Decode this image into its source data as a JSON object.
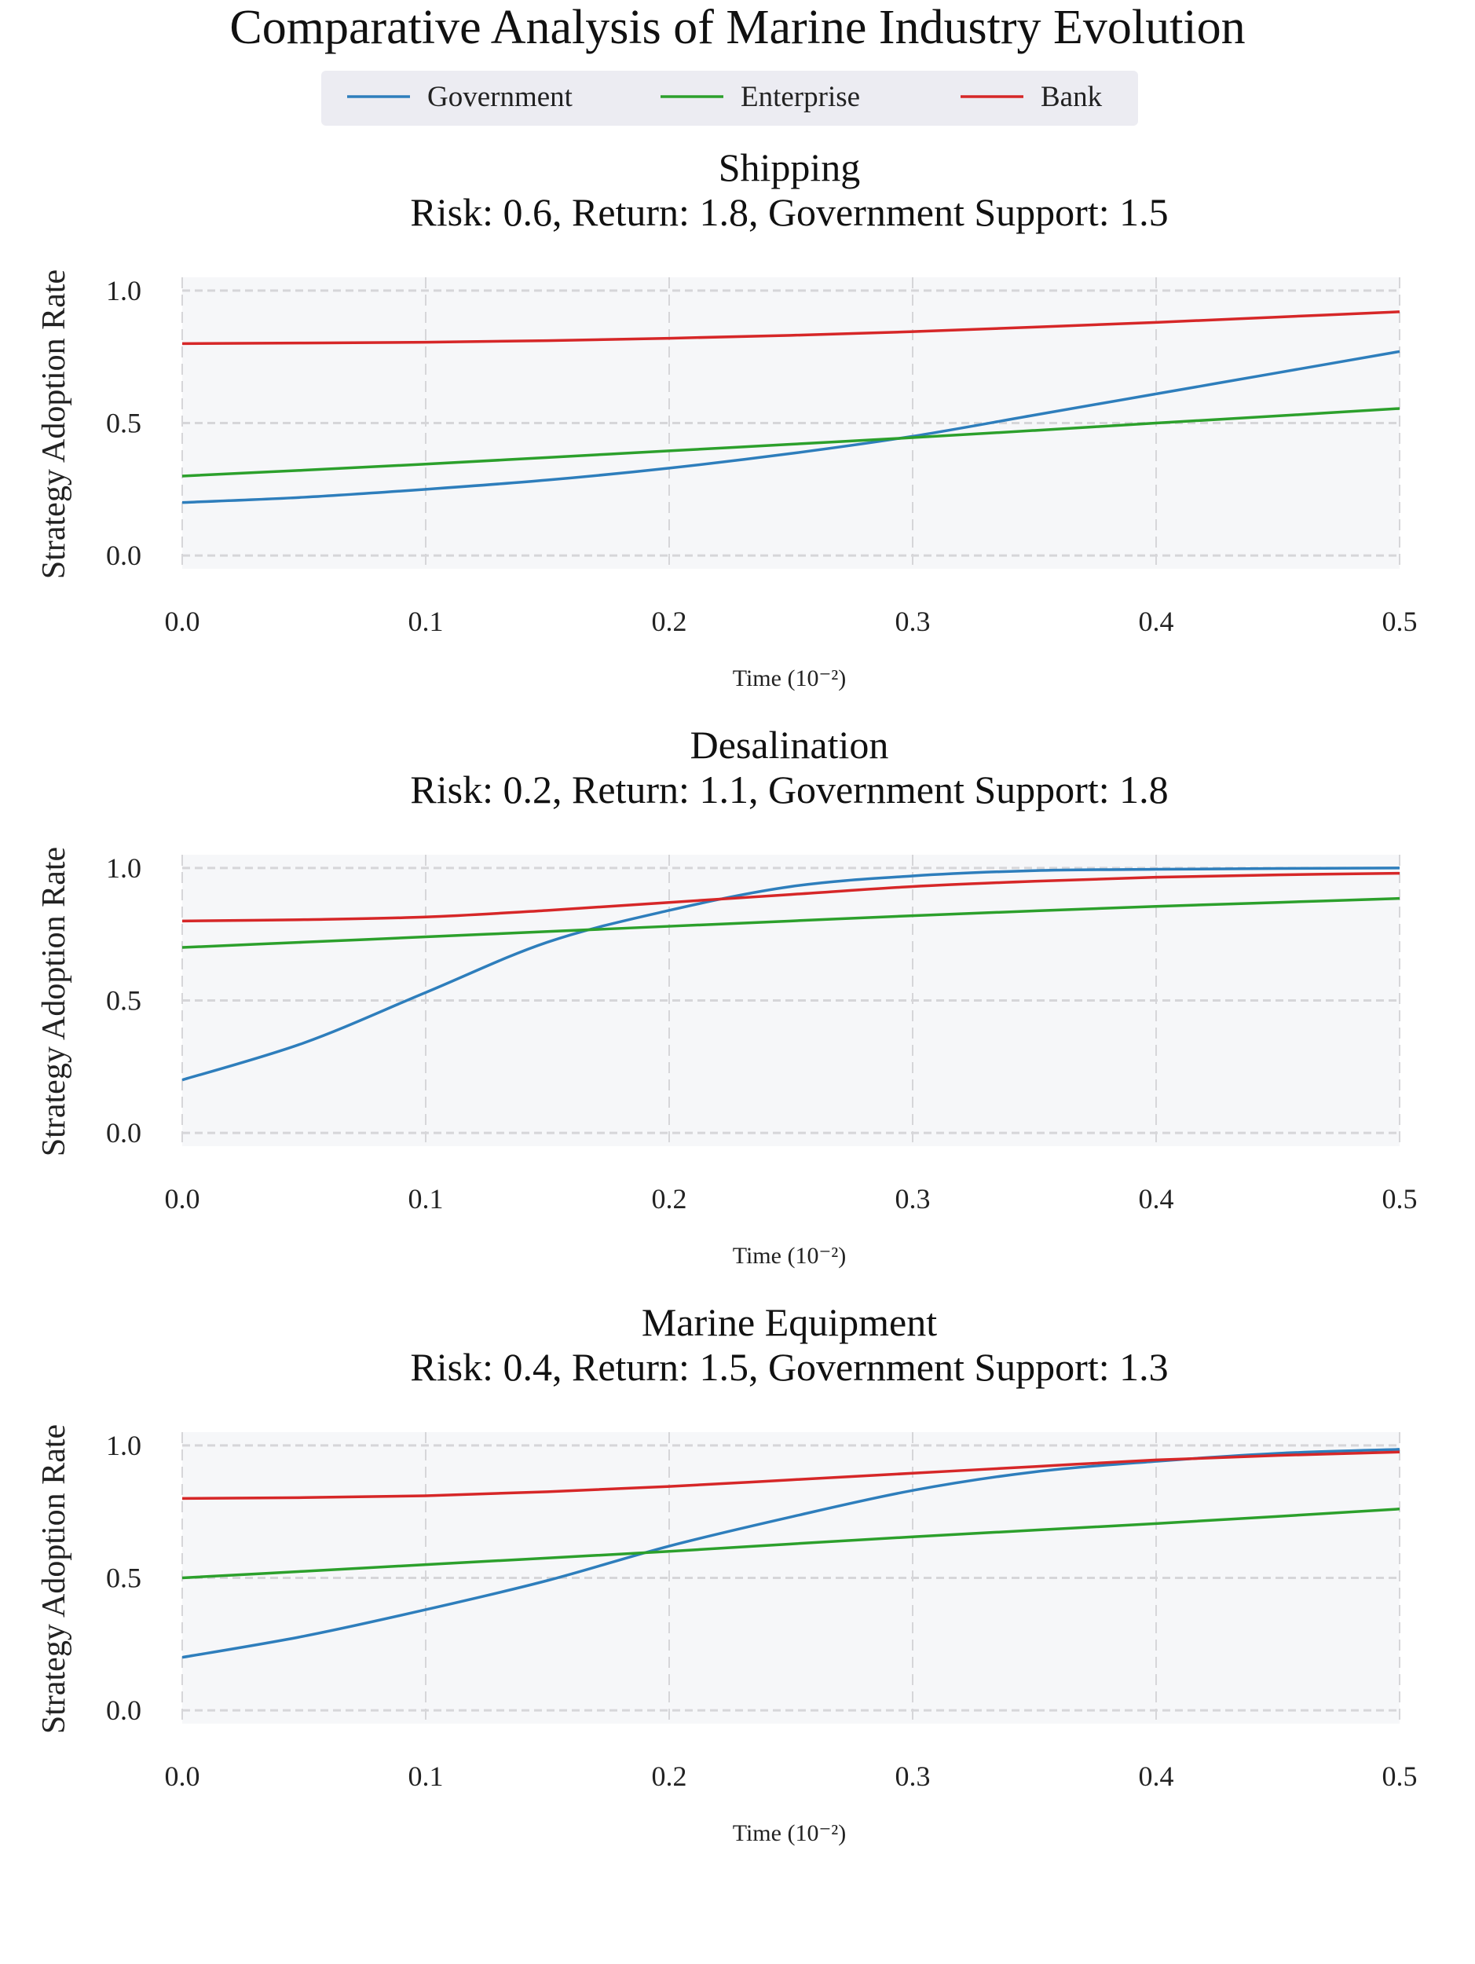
{
  "title": "Comparative Analysis of Marine Industry Evolution",
  "legend": [
    {
      "name": "Government",
      "color": "#2e7ebc"
    },
    {
      "name": "Enterprise",
      "color": "#2ca02c"
    },
    {
      "name": "Bank",
      "color": "#d62728"
    }
  ],
  "chart_data": [
    {
      "type": "line",
      "title": "Shipping",
      "subtitle": "Risk: 0.6, Return: 1.8, Government Support: 1.5",
      "xlabel": "Time (10⁻²)",
      "ylabel": "Strategy Adoption Rate",
      "xlim": [
        0,
        0.5
      ],
      "ylim": [
        -0.05,
        1.05
      ],
      "xticks": [
        "0.0",
        "0.1",
        "0.2",
        "0.3",
        "0.4",
        "0.5"
      ],
      "yticks": [
        "0.0",
        "0.5",
        "1.0"
      ],
      "x": [
        0,
        0.05,
        0.1,
        0.15,
        0.2,
        0.25,
        0.3,
        0.35,
        0.4,
        0.45,
        0.5
      ],
      "series": [
        {
          "name": "Government",
          "values": [
            0.2,
            0.22,
            0.25,
            0.285,
            0.33,
            0.385,
            0.45,
            0.53,
            0.61,
            0.69,
            0.77
          ]
        },
        {
          "name": "Enterprise",
          "values": [
            0.3,
            0.322,
            0.345,
            0.37,
            0.395,
            0.42,
            0.445,
            0.472,
            0.5,
            0.527,
            0.555
          ]
        },
        {
          "name": "Bank",
          "values": [
            0.8,
            0.802,
            0.805,
            0.811,
            0.82,
            0.831,
            0.845,
            0.862,
            0.88,
            0.9,
            0.92
          ]
        }
      ],
      "grid": true
    },
    {
      "type": "line",
      "title": "Desalination",
      "subtitle": "Risk: 0.2, Return: 1.1, Government Support: 1.8",
      "xlabel": "Time (10⁻²)",
      "ylabel": "Strategy Adoption Rate",
      "xlim": [
        0,
        0.5
      ],
      "ylim": [
        -0.05,
        1.05
      ],
      "xticks": [
        "0.0",
        "0.1",
        "0.2",
        "0.3",
        "0.4",
        "0.5"
      ],
      "yticks": [
        "0.0",
        "0.5",
        "1.0"
      ],
      "x": [
        0,
        0.05,
        0.1,
        0.15,
        0.2,
        0.25,
        0.3,
        0.35,
        0.4,
        0.45,
        0.5
      ],
      "series": [
        {
          "name": "Government",
          "values": [
            0.2,
            0.34,
            0.53,
            0.72,
            0.84,
            0.93,
            0.97,
            0.99,
            0.995,
            0.998,
            1.0
          ]
        },
        {
          "name": "Enterprise",
          "values": [
            0.7,
            0.72,
            0.74,
            0.76,
            0.78,
            0.8,
            0.82,
            0.838,
            0.855,
            0.87,
            0.885
          ]
        },
        {
          "name": "Bank",
          "values": [
            0.8,
            0.805,
            0.815,
            0.84,
            0.87,
            0.9,
            0.93,
            0.95,
            0.965,
            0.974,
            0.98
          ]
        }
      ],
      "grid": true
    },
    {
      "type": "line",
      "title": "Marine Equipment",
      "subtitle": "Risk: 0.4, Return: 1.5, Government Support: 1.3",
      "xlabel": "Time (10⁻²)",
      "ylabel": "Strategy Adoption Rate",
      "xlim": [
        0,
        0.5
      ],
      "ylim": [
        -0.05,
        1.05
      ],
      "xticks": [
        "0.0",
        "0.1",
        "0.2",
        "0.3",
        "0.4",
        "0.5"
      ],
      "yticks": [
        "0.0",
        "0.5",
        "1.0"
      ],
      "x": [
        0,
        0.05,
        0.1,
        0.15,
        0.2,
        0.25,
        0.3,
        0.35,
        0.4,
        0.45,
        0.5
      ],
      "series": [
        {
          "name": "Government",
          "values": [
            0.2,
            0.28,
            0.38,
            0.49,
            0.62,
            0.73,
            0.83,
            0.9,
            0.94,
            0.97,
            0.985
          ]
        },
        {
          "name": "Enterprise",
          "values": [
            0.5,
            0.525,
            0.55,
            0.575,
            0.6,
            0.628,
            0.655,
            0.68,
            0.705,
            0.732,
            0.76
          ]
        },
        {
          "name": "Bank",
          "values": [
            0.8,
            0.803,
            0.81,
            0.825,
            0.845,
            0.87,
            0.895,
            0.92,
            0.945,
            0.962,
            0.975
          ]
        }
      ],
      "grid": true
    }
  ]
}
